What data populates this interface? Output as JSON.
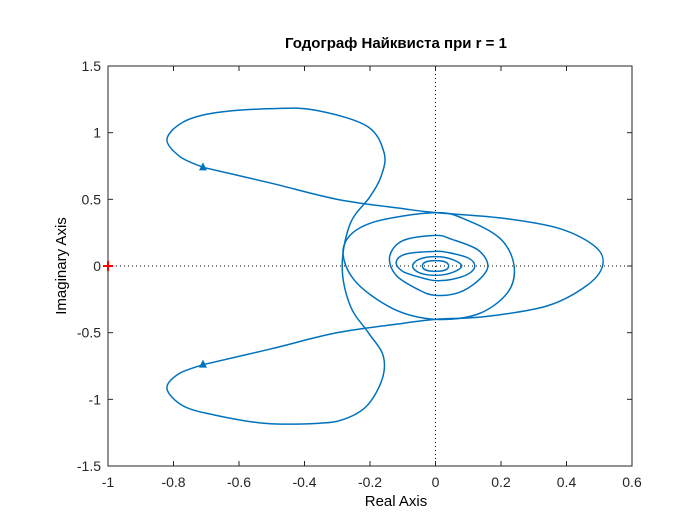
{
  "chart_data": {
    "type": "line",
    "title": "Годограф Найквиста при r = 1",
    "xlabel": "Real Axis",
    "ylabel": "Imaginary Axis",
    "xlim": [
      -1,
      0.6
    ],
    "ylim": [
      -1.5,
      1.5
    ],
    "xticks": [
      "-1",
      "-0.8",
      "-0.6",
      "-0.4",
      "-0.2",
      "0",
      "0.2",
      "0.4",
      "0.6"
    ],
    "yticks": [
      "1.5",
      "1",
      "0.5",
      "0",
      "-0.5",
      "-1",
      "-1.5"
    ],
    "grid": false,
    "reference_lines": [
      "x = 0",
      "y = 0"
    ],
    "series": [
      {
        "color": "#0072BD",
        "x": [
          -0.71,
          -0.78,
          -0.82,
          -0.77,
          -0.67,
          -0.5,
          -0.37,
          -0.21,
          -0.157,
          -0.165,
          -0.2,
          -0.26,
          -0.285,
          -0.26,
          -0.205,
          -0.16,
          -0.163,
          -0.21,
          -0.28,
          -0.36,
          -0.52,
          -0.67,
          -0.77,
          -0.82,
          -0.785,
          -0.71
        ],
        "y": [
          0.74,
          0.82,
          0.95,
          1.08,
          1.15,
          1.18,
          1.17,
          1.05,
          0.85,
          0.68,
          0.52,
          0.32,
          0.0,
          -0.3,
          -0.5,
          -0.67,
          -0.85,
          -1.05,
          -1.15,
          -1.18,
          -1.18,
          -1.12,
          -1.05,
          -0.92,
          -0.81,
          -0.74
        ],
        "direction_markers": [
          {
            "x": -0.71,
            "y": 0.74
          },
          {
            "x": -0.71,
            "y": -0.74
          }
        ]
      },
      {
        "color": "#0072BD",
        "x": [
          -0.71,
          -0.5,
          -0.3,
          -0.1,
          0.0,
          0.2,
          0.38,
          0.49,
          0.51,
          0.46,
          0.34,
          0.15,
          0.0,
          -0.1,
          -0.3,
          -0.5,
          -0.71
        ],
        "y": [
          0.74,
          0.62,
          0.5,
          0.43,
          0.4,
          0.36,
          0.28,
          0.14,
          0.0,
          -0.15,
          -0.3,
          -0.38,
          -0.4,
          -0.43,
          -0.5,
          -0.62,
          -0.74
        ]
      },
      {
        "color": "#0072BD",
        "x": [
          0.0,
          -0.2,
          -0.28,
          -0.25,
          -0.13,
          0.0,
          0.13,
          0.22,
          0.24,
          0.2,
          0.1,
          0.0
        ],
        "y": [
          0.4,
          0.32,
          0.15,
          -0.1,
          -0.32,
          -0.4,
          -0.36,
          -0.2,
          0.0,
          0.2,
          0.34,
          0.4
        ]
      },
      {
        "color": "#0072BD",
        "x": [
          0.0,
          -0.1,
          -0.14,
          -0.12,
          -0.05,
          0.0,
          0.07,
          0.13,
          0.16,
          0.13,
          0.05,
          0.0
        ],
        "y": [
          0.23,
          0.19,
          0.07,
          -0.07,
          -0.18,
          -0.22,
          -0.2,
          -0.11,
          0.0,
          0.12,
          0.2,
          0.23
        ]
      },
      {
        "color": "#0072BD",
        "x": [
          0.0,
          -0.09,
          -0.12,
          -0.1,
          -0.04,
          0.0,
          0.05,
          0.1,
          0.12,
          0.1,
          0.04,
          0.0
        ],
        "y": [
          0.11,
          0.09,
          0.03,
          -0.04,
          -0.09,
          -0.11,
          -0.1,
          -0.06,
          0.0,
          0.06,
          0.1,
          0.11
        ]
      },
      {
        "color": "#0072BD",
        "x": [
          0.0,
          -0.05,
          -0.07,
          -0.05,
          0.0,
          0.05,
          0.08,
          0.05,
          0.0
        ],
        "y": [
          0.07,
          0.05,
          0.0,
          -0.05,
          -0.07,
          -0.05,
          0.0,
          0.05,
          0.07
        ]
      },
      {
        "color": "#0072BD",
        "x": [
          0.0,
          -0.03,
          -0.04,
          -0.03,
          0.0,
          0.03,
          0.04,
          0.03,
          0.0
        ],
        "y": [
          0.04,
          0.03,
          0.0,
          -0.03,
          -0.04,
          -0.03,
          0.0,
          0.03,
          0.04
        ]
      }
    ],
    "critical_point": {
      "x": -1,
      "y": 0,
      "marker": "+",
      "color": "#FF0000"
    }
  }
}
